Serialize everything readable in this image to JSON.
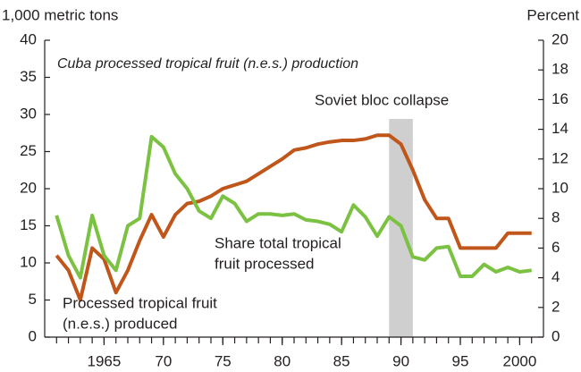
{
  "chart_data": {
    "type": "line",
    "subtitle": "Cuba processed tropical fruit (n.e.s.) production",
    "ylabel": "1,000 metric tons",
    "y2label": "Percent",
    "x": [
      1961,
      1962,
      1963,
      1964,
      1965,
      1966,
      1967,
      1968,
      1969,
      1970,
      1971,
      1972,
      1973,
      1974,
      1975,
      1976,
      1977,
      1978,
      1979,
      1980,
      1981,
      1982,
      1983,
      1984,
      1985,
      1986,
      1987,
      1988,
      1989,
      1990,
      1991,
      1992,
      1993,
      1994,
      1995,
      1996,
      1997,
      1998,
      1999,
      2000,
      2001
    ],
    "xlim": [
      1960,
      2002
    ],
    "xticks": [
      {
        "value": 1965,
        "label": "1965"
      },
      {
        "value": 1970,
        "label": "70"
      },
      {
        "value": 1975,
        "label": "75"
      },
      {
        "value": 1980,
        "label": "80"
      },
      {
        "value": 1985,
        "label": "85"
      },
      {
        "value": 1990,
        "label": "90"
      },
      {
        "value": 1995,
        "label": "95"
      },
      {
        "value": 2000,
        "label": "2000"
      }
    ],
    "xminorticks": [
      1961,
      1962,
      1963,
      1964,
      1965,
      1966,
      1967,
      1968,
      1969,
      1970,
      1971,
      1972,
      1973,
      1974,
      1975,
      1976,
      1977,
      1978,
      1979,
      1980,
      1981,
      1982,
      1983,
      1984,
      1985,
      1986,
      1987,
      1988,
      1989,
      1990,
      1991,
      1992,
      1993,
      1994,
      1995,
      1996,
      1997,
      1998,
      1999,
      2000,
      2001
    ],
    "ylim": [
      0,
      40
    ],
    "yticks": [
      0,
      5,
      10,
      15,
      20,
      25,
      30,
      35,
      40
    ],
    "y2lim": [
      0,
      20
    ],
    "y2ticks": [
      0,
      2,
      4,
      6,
      8,
      10,
      12,
      14,
      16,
      18,
      20
    ],
    "shaded_span": [
      1989,
      1991
    ],
    "shaded_color": "#cfcfcf",
    "shaded_label": "Soviet bloc collapse",
    "series": [
      {
        "name": [
          "Processed tropical fruit",
          "(n.e.s.) produced"
        ],
        "color": "#c0561a",
        "axis": "y",
        "values": [
          11,
          9,
          5,
          12,
          10.5,
          6,
          9,
          13,
          16.5,
          13.5,
          16.5,
          18,
          18.3,
          19,
          20,
          20.5,
          21,
          22,
          23,
          24,
          25.2,
          25.5,
          26,
          26.3,
          26.5,
          26.5,
          26.7,
          27.2,
          27.2,
          26,
          22.5,
          18.5,
          16,
          16,
          12,
          12,
          12,
          12,
          14,
          14,
          14
        ]
      },
      {
        "name": [
          "Share total tropical",
          "fruit processed"
        ],
        "color": "#7cc242",
        "axis": "y2",
        "values": [
          8.2,
          5.5,
          4,
          8.2,
          5.5,
          4.5,
          7.5,
          8,
          13.5,
          12.8,
          11,
          10,
          8.5,
          8,
          9.5,
          9,
          7.8,
          8.3,
          8.3,
          8.2,
          8.3,
          7.9,
          7.8,
          7.6,
          7.1,
          8.9,
          8.1,
          6.8,
          8.1,
          7.5,
          5.4,
          5.2,
          6,
          6.1,
          4.1,
          4.1,
          4.9,
          4.4,
          4.7,
          4.4,
          4.5
        ]
      }
    ]
  }
}
